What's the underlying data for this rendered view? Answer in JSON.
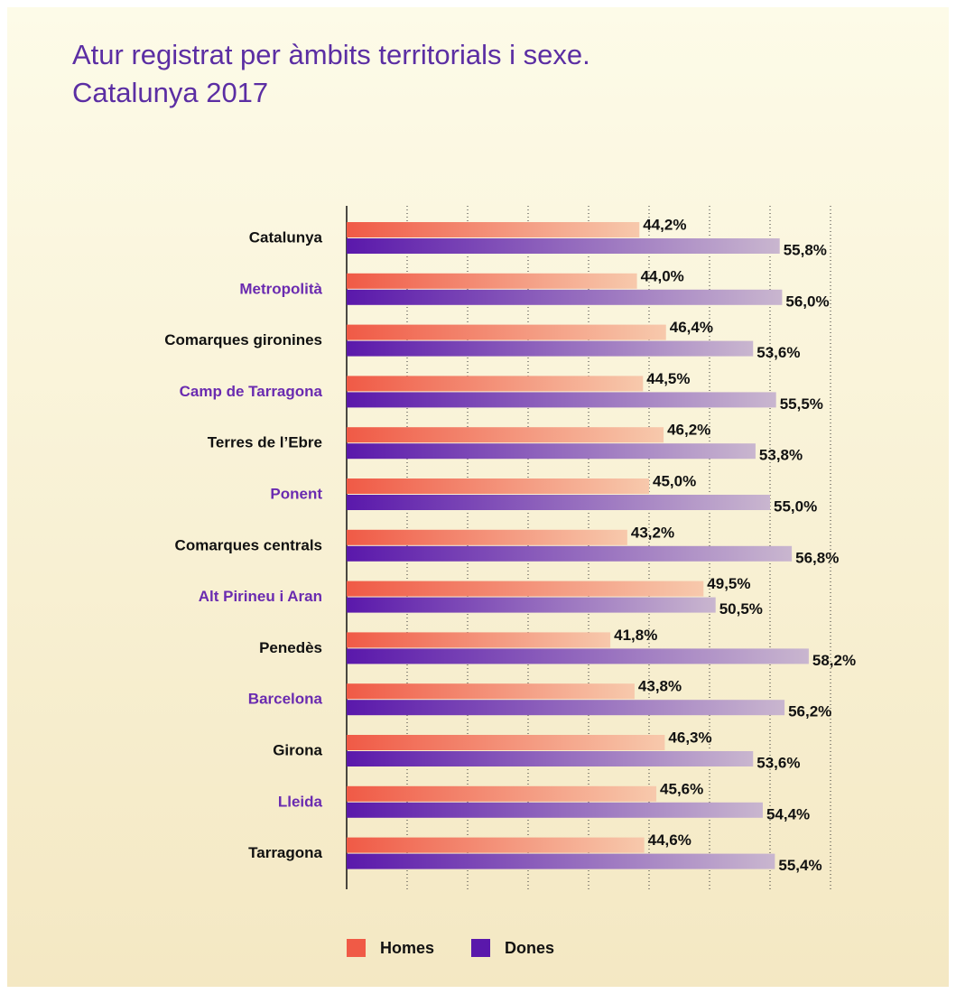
{
  "chart_data": {
    "type": "hbar",
    "title": [
      "Atur registrat per àmbits territorials i sexe.",
      "Catalunya 2017"
    ],
    "categories": [
      "Catalunya",
      "Metropolità",
      "Comarques gironines",
      "Camp de Tarragona",
      "Terres de l’Ebre",
      "Ponent",
      "Comarques centrals",
      "Alt Pirineu i Aran",
      "Penedès",
      "Barcelona",
      "Girona",
      "Lleida",
      "Tarragona"
    ],
    "category_colors": [
      "#111111",
      "#6a2bb0",
      "#111111",
      "#6a2bb0",
      "#111111",
      "#6a2bb0",
      "#111111",
      "#6a2bb0",
      "#111111",
      "#6a2bb0",
      "#111111",
      "#6a2bb0",
      "#111111"
    ],
    "series": [
      {
        "name": "Homes",
        "color": "#f05a46",
        "gradient_end": "#f7c9ac",
        "values": [
          44.2,
          44.0,
          46.4,
          44.5,
          46.2,
          45.0,
          43.2,
          49.5,
          41.8,
          43.8,
          46.3,
          45.6,
          44.6
        ],
        "value_labels": [
          "44,2%",
          "44,0%",
          "46,4%",
          "44,5%",
          "46,2%",
          "45,0%",
          "43,2%",
          "49,5%",
          "41,8%",
          "43,8%",
          "46,3%",
          "45,6%",
          "44,6%"
        ]
      },
      {
        "name": "Dones",
        "color": "#5a18ab",
        "gradient_end": "#c9b6cf",
        "values": [
          55.8,
          56.0,
          53.6,
          55.5,
          53.8,
          55.0,
          56.8,
          50.5,
          58.2,
          56.2,
          53.6,
          54.4,
          55.4
        ],
        "value_labels": [
          "55,8%",
          "56,0%",
          "53,6%",
          "55,5%",
          "53,8%",
          "55,0%",
          "56,8%",
          "50,5%",
          "58,2%",
          "56,2%",
          "53,6%",
          "54,4%",
          "55,4%"
        ]
      }
    ],
    "xlim": [
      20,
      60
    ],
    "xticks": [
      25,
      30,
      35,
      40,
      45,
      50,
      55,
      60
    ],
    "grid": true
  }
}
